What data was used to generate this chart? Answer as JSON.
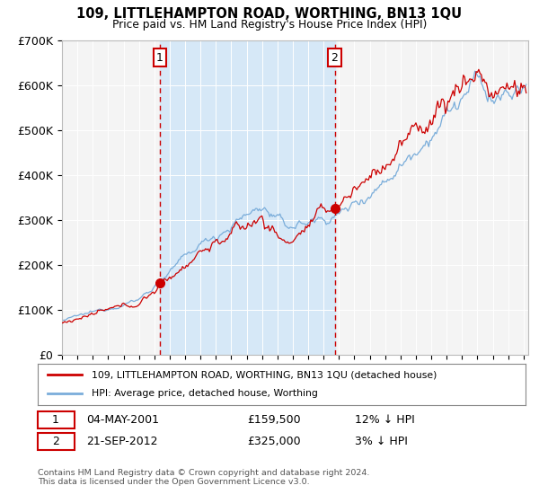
{
  "title": "109, LITTLEHAMPTON ROAD, WORTHING, BN13 1QU",
  "subtitle": "Price paid vs. HM Land Registry's House Price Index (HPI)",
  "fig_bg": "#ffffff",
  "plot_bg": "#f0f0f0",
  "shade_color": "#d6e8f7",
  "ylabel": "",
  "xlabel": "",
  "ylim": [
    0,
    700000
  ],
  "yticks": [
    0,
    100000,
    200000,
    300000,
    400000,
    500000,
    600000,
    700000
  ],
  "ytick_labels": [
    "£0",
    "£100K",
    "£200K",
    "£300K",
    "£400K",
    "£500K",
    "£600K",
    "£700K"
  ],
  "xmin": 1995.0,
  "xmax": 2025.3,
  "red_line_color": "#cc0000",
  "blue_line_color": "#7aadda",
  "sale1_x": 2001.34,
  "sale1_y": 159500,
  "sale2_x": 2012.72,
  "sale2_y": 325000,
  "legend_line1": "109, LITTLEHAMPTON ROAD, WORTHING, BN13 1QU (detached house)",
  "legend_line2": "HPI: Average price, detached house, Worthing",
  "footnote": "Contains HM Land Registry data © Crown copyright and database right 2024.\nThis data is licensed under the Open Government Licence v3.0.",
  "grid_color": "#ffffff",
  "vline_color": "#cc0000",
  "seed": 12345
}
